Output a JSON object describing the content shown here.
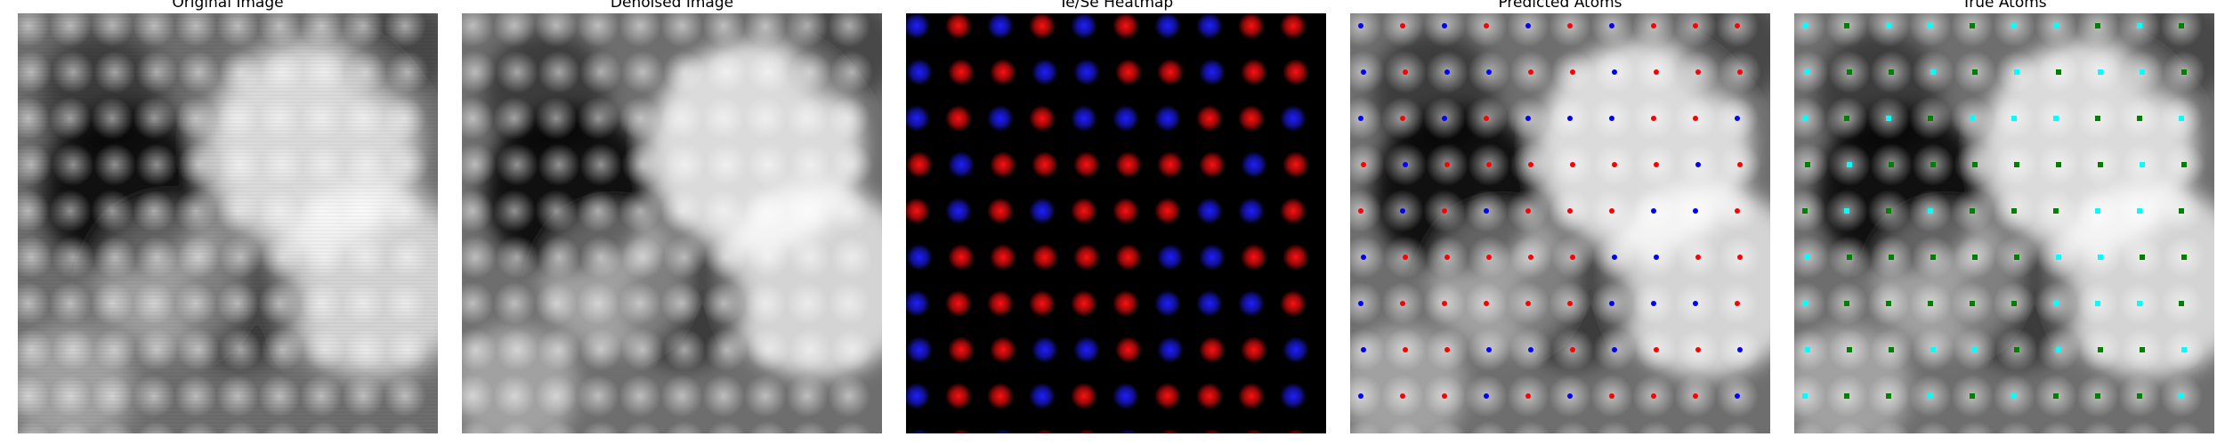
{
  "panels": [
    {
      "title": "Original Image"
    },
    {
      "title": "Denoised Image"
    },
    {
      "title": "Te/Se Heatmap"
    },
    {
      "title": "Predicted Atoms"
    },
    {
      "title": "True Atoms"
    }
  ],
  "colors": {
    "te_heatmap": "#ff1010",
    "se_heatmap": "#1e1eff",
    "predicted_te": "#ff0000",
    "predicted_se": "#0000ff",
    "true_te": "#00ffff",
    "true_se": "#008000"
  },
  "lattice": {
    "rows": 10,
    "cols": 10,
    "heatmap_types": [
      "BRBRBRBBRR",
      "BRRBBRRBRR",
      "BRBRBBBRRB",
      "RBRRRRRRBR",
      "RBRBRRRBBR",
      "BRRRRRBBRR",
      "BRRRRRBBBR",
      "BRRBBRBRRB",
      "BRRBRBRRRB",
      "BRBRRBRRRR"
    ],
    "predicted_types": [
      "BRBRBRBRRR",
      "BRBBRRBRRR",
      "BRBRBBBRRB",
      "RBRRRRRRBR",
      "RBRBRRRBBR",
      "BRRRRRBBRR",
      "BRRRRRBBBR",
      "BRRBBRBRRB",
      "BRRBRBRRRB",
      "BRBRRBRRRR"
    ],
    "true_types": [
      "CGCCGCCGCG",
      "CGGCGCGCCG",
      "CGCGCCCGGC",
      "GCGGGGGGCG",
      "GCGCGGGCCG",
      "CGGGGGCCGG",
      "CGGGGGCCCG",
      "CGGCCGCGGC",
      "CGGCGCGGGC",
      "CGCGGCGGGG"
    ]
  }
}
